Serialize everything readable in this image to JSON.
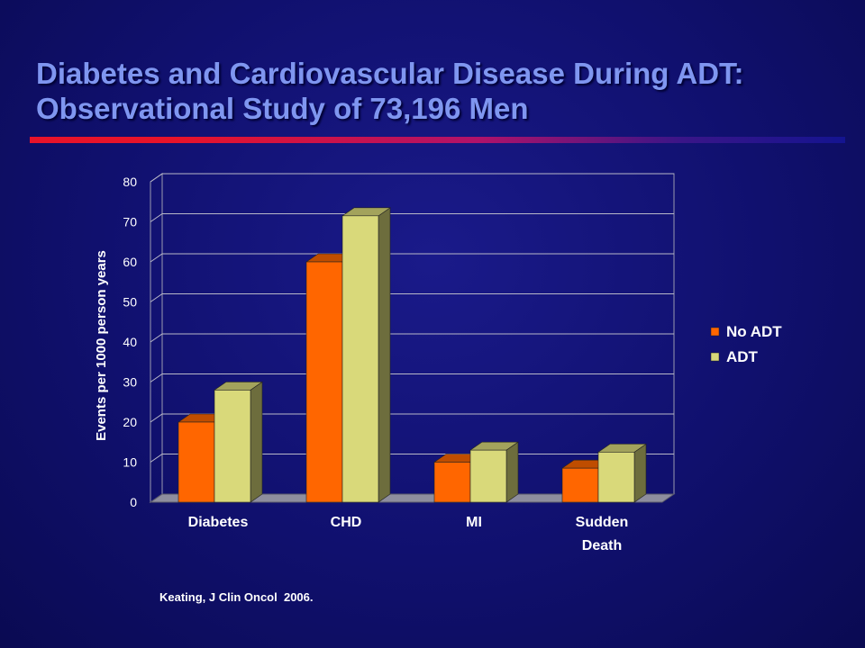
{
  "slide": {
    "title_line1": "Diabetes and Cardiovascular Disease During ADT:",
    "title_line2": "Observational Study of 73,196 Men",
    "citation": "Keating, J Clin Oncol  2006."
  },
  "colors": {
    "no_adt": "#ff6600",
    "adt": "#d9d97a",
    "title": "#7f96f0",
    "background": "#12127a"
  },
  "chart_data": {
    "type": "bar",
    "categories": [
      [
        "Diabetes"
      ],
      [
        "CHD"
      ],
      [
        "MI"
      ],
      [
        "Sudden",
        "Death"
      ]
    ],
    "series": [
      {
        "name": "No ADT",
        "values": [
          20,
          60,
          10,
          8.5
        ]
      },
      {
        "name": "ADT",
        "values": [
          28,
          71.5,
          13,
          12.5
        ]
      }
    ],
    "ylabel": "Events per 1000 person years",
    "xlabel": "",
    "ylim": [
      0,
      80
    ],
    "yticks": [
      0,
      10,
      20,
      30,
      40,
      50,
      60,
      70,
      80
    ],
    "grid": true,
    "legend": "right",
    "style": "3d"
  }
}
